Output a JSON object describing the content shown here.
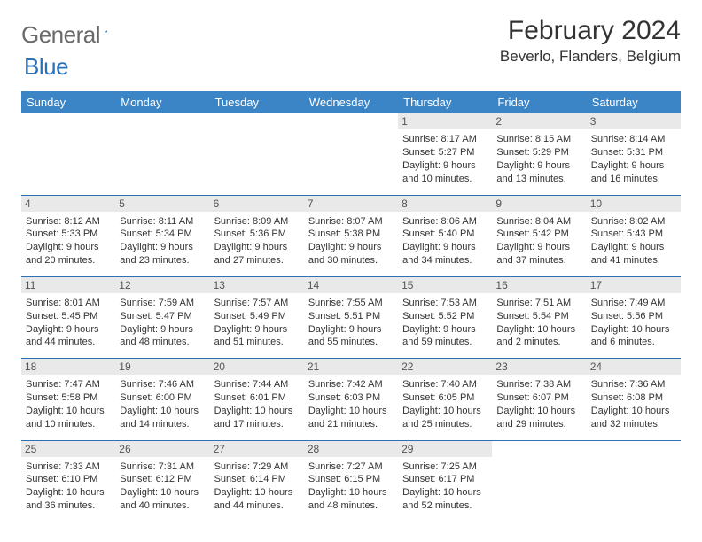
{
  "logo": {
    "gray": "General",
    "blue": "Blue"
  },
  "title": "February 2024",
  "location": "Beverlo, Flanders, Belgium",
  "colors": {
    "header_bg": "#3b85c6",
    "header_text": "#ffffff",
    "border": "#2a71b8",
    "daynum_bg": "#e9e9e9",
    "logo_gray": "#6a6a6a",
    "logo_blue": "#2a71b8"
  },
  "weekdays": [
    "Sunday",
    "Monday",
    "Tuesday",
    "Wednesday",
    "Thursday",
    "Friday",
    "Saturday"
  ],
  "layout": {
    "startCol": 4,
    "daysInMonth": 29
  },
  "days": {
    "1": {
      "sunrise": "8:17 AM",
      "sunset": "5:27 PM",
      "daylight": "9 hours and 10 minutes."
    },
    "2": {
      "sunrise": "8:15 AM",
      "sunset": "5:29 PM",
      "daylight": "9 hours and 13 minutes."
    },
    "3": {
      "sunrise": "8:14 AM",
      "sunset": "5:31 PM",
      "daylight": "9 hours and 16 minutes."
    },
    "4": {
      "sunrise": "8:12 AM",
      "sunset": "5:33 PM",
      "daylight": "9 hours and 20 minutes."
    },
    "5": {
      "sunrise": "8:11 AM",
      "sunset": "5:34 PM",
      "daylight": "9 hours and 23 minutes."
    },
    "6": {
      "sunrise": "8:09 AM",
      "sunset": "5:36 PM",
      "daylight": "9 hours and 27 minutes."
    },
    "7": {
      "sunrise": "8:07 AM",
      "sunset": "5:38 PM",
      "daylight": "9 hours and 30 minutes."
    },
    "8": {
      "sunrise": "8:06 AM",
      "sunset": "5:40 PM",
      "daylight": "9 hours and 34 minutes."
    },
    "9": {
      "sunrise": "8:04 AM",
      "sunset": "5:42 PM",
      "daylight": "9 hours and 37 minutes."
    },
    "10": {
      "sunrise": "8:02 AM",
      "sunset": "5:43 PM",
      "daylight": "9 hours and 41 minutes."
    },
    "11": {
      "sunrise": "8:01 AM",
      "sunset": "5:45 PM",
      "daylight": "9 hours and 44 minutes."
    },
    "12": {
      "sunrise": "7:59 AM",
      "sunset": "5:47 PM",
      "daylight": "9 hours and 48 minutes."
    },
    "13": {
      "sunrise": "7:57 AM",
      "sunset": "5:49 PM",
      "daylight": "9 hours and 51 minutes."
    },
    "14": {
      "sunrise": "7:55 AM",
      "sunset": "5:51 PM",
      "daylight": "9 hours and 55 minutes."
    },
    "15": {
      "sunrise": "7:53 AM",
      "sunset": "5:52 PM",
      "daylight": "9 hours and 59 minutes."
    },
    "16": {
      "sunrise": "7:51 AM",
      "sunset": "5:54 PM",
      "daylight": "10 hours and 2 minutes."
    },
    "17": {
      "sunrise": "7:49 AM",
      "sunset": "5:56 PM",
      "daylight": "10 hours and 6 minutes."
    },
    "18": {
      "sunrise": "7:47 AM",
      "sunset": "5:58 PM",
      "daylight": "10 hours and 10 minutes."
    },
    "19": {
      "sunrise": "7:46 AM",
      "sunset": "6:00 PM",
      "daylight": "10 hours and 14 minutes."
    },
    "20": {
      "sunrise": "7:44 AM",
      "sunset": "6:01 PM",
      "daylight": "10 hours and 17 minutes."
    },
    "21": {
      "sunrise": "7:42 AM",
      "sunset": "6:03 PM",
      "daylight": "10 hours and 21 minutes."
    },
    "22": {
      "sunrise": "7:40 AM",
      "sunset": "6:05 PM",
      "daylight": "10 hours and 25 minutes."
    },
    "23": {
      "sunrise": "7:38 AM",
      "sunset": "6:07 PM",
      "daylight": "10 hours and 29 minutes."
    },
    "24": {
      "sunrise": "7:36 AM",
      "sunset": "6:08 PM",
      "daylight": "10 hours and 32 minutes."
    },
    "25": {
      "sunrise": "7:33 AM",
      "sunset": "6:10 PM",
      "daylight": "10 hours and 36 minutes."
    },
    "26": {
      "sunrise": "7:31 AM",
      "sunset": "6:12 PM",
      "daylight": "10 hours and 40 minutes."
    },
    "27": {
      "sunrise": "7:29 AM",
      "sunset": "6:14 PM",
      "daylight": "10 hours and 44 minutes."
    },
    "28": {
      "sunrise": "7:27 AM",
      "sunset": "6:15 PM",
      "daylight": "10 hours and 48 minutes."
    },
    "29": {
      "sunrise": "7:25 AM",
      "sunset": "6:17 PM",
      "daylight": "10 hours and 52 minutes."
    }
  }
}
